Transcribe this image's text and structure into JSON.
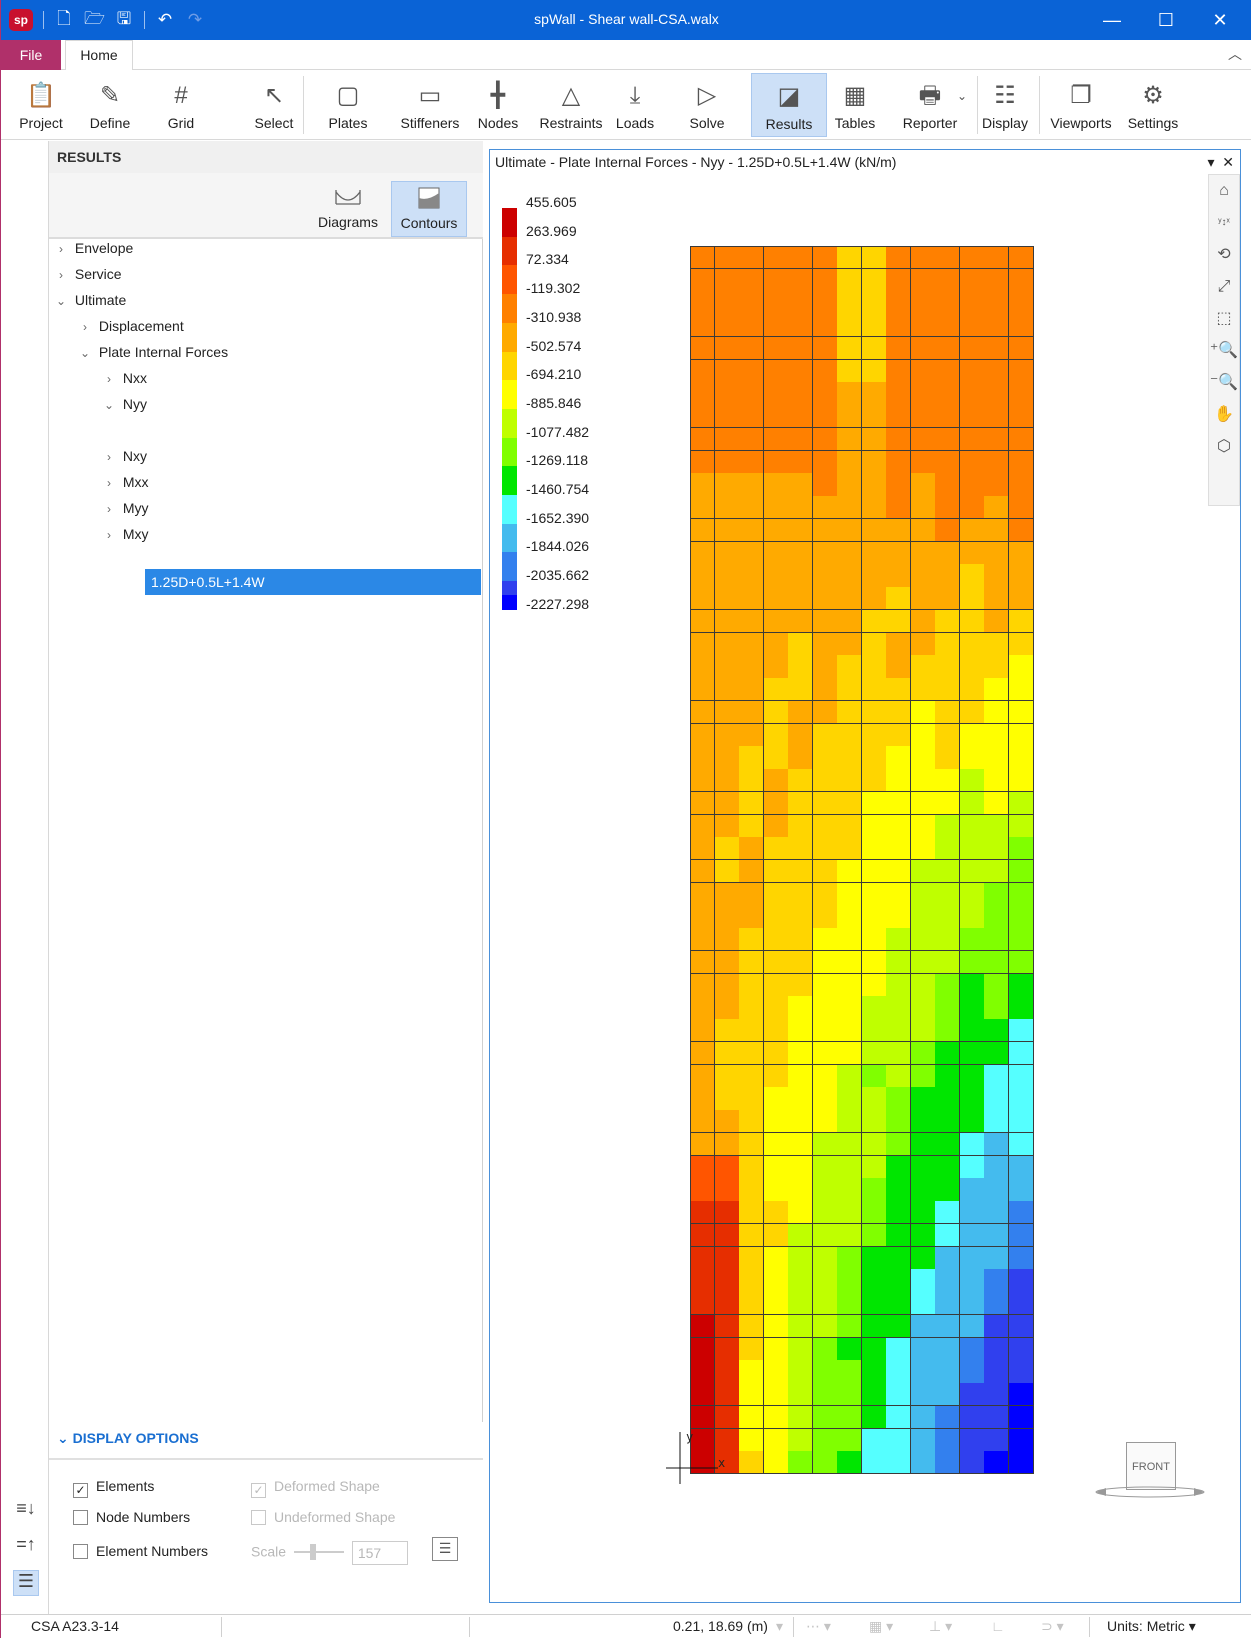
{
  "app": {
    "title": "spWall - Shear wall-CSA.walx",
    "logo": "sp"
  },
  "window_controls": {
    "minimize": "—",
    "maximize": "☐",
    "close": "✕"
  },
  "menu": {
    "file": "File",
    "home": "Home"
  },
  "ribbon": {
    "buttons": [
      {
        "label": "Project",
        "icon": "project-icon"
      },
      {
        "label": "Define",
        "icon": "define-icon"
      },
      {
        "label": "Grid",
        "icon": "grid-icon"
      },
      {
        "label": "Select",
        "icon": "cursor-icon"
      },
      {
        "label": "Plates",
        "icon": "plates-icon"
      },
      {
        "label": "Stiffeners",
        "icon": "stiffeners-icon"
      },
      {
        "label": "Nodes",
        "icon": "nodes-icon"
      },
      {
        "label": "Restraints",
        "icon": "restraints-icon"
      },
      {
        "label": "Loads",
        "icon": "loads-icon"
      },
      {
        "label": "Solve",
        "icon": "solve-icon"
      },
      {
        "label": "Results",
        "icon": "results-icon",
        "active": true
      },
      {
        "label": "Tables",
        "icon": "tables-icon"
      },
      {
        "label": "Reporter",
        "icon": "reporter-icon"
      },
      {
        "label": "Display",
        "icon": "display-icon"
      },
      {
        "label": "Viewports",
        "icon": "viewports-icon"
      },
      {
        "label": "Settings",
        "icon": "settings-icon"
      }
    ]
  },
  "results_panel": {
    "header": "RESULTS",
    "modes": {
      "diagrams": "Diagrams",
      "contours": "Contours",
      "active": "Contours"
    },
    "tree": {
      "envelope": "Envelope",
      "service": "Service",
      "ultimate": "Ultimate",
      "displacement": "Displacement",
      "plate_internal_forces": "Plate Internal Forces",
      "nxx": "Nxx",
      "nyy": "Nyy",
      "selected_combo": "1.25D+0.5L+1.4W",
      "nxy": "Nxy",
      "mxx": "Mxx",
      "myy": "Myy",
      "mxy": "Mxy"
    },
    "display_options": {
      "header": "DISPLAY OPTIONS",
      "elements": "Elements",
      "elements_checked": true,
      "node_numbers": "Node Numbers",
      "element_numbers": "Element Numbers",
      "deformed_shape": "Deformed Shape",
      "undeformed_shape": "Undeformed Shape",
      "scale_label": "Scale",
      "scale_value": "157"
    }
  },
  "viewport": {
    "title": "Ultimate - Plate Internal Forces - Nyy - 1.25D+0.5L+1.4W (kN/m)",
    "legend": [
      {
        "value": "455.605",
        "color": "#cc0000"
      },
      {
        "value": "263.969",
        "color": "#e62e00"
      },
      {
        "value": "72.334",
        "color": "#ff5500"
      },
      {
        "value": "-119.302",
        "color": "#ff8000"
      },
      {
        "value": "-310.938",
        "color": "#ffaa00"
      },
      {
        "value": "-502.574",
        "color": "#ffd500"
      },
      {
        "value": "-694.210",
        "color": "#ffff00"
      },
      {
        "value": "-885.846",
        "color": "#bfff00"
      },
      {
        "value": "-1077.482",
        "color": "#80ff00"
      },
      {
        "value": "-1269.118",
        "color": "#00e600"
      },
      {
        "value": "-1460.754",
        "color": "#55ffff"
      },
      {
        "value": "-1652.390",
        "color": "#44bbee"
      },
      {
        "value": "-1844.026",
        "color": "#3380ee"
      },
      {
        "value": "-2035.662",
        "color": "#3040ee"
      },
      {
        "value": "-2227.298",
        "color": "#0000ff"
      }
    ],
    "axis_x": "x",
    "axis_y": "y",
    "view_cube": "FRONT"
  },
  "status": {
    "code": "CSA A23.3-14",
    "coords": "0.21, 18.69 (m)",
    "units_label": "Units:",
    "units_value": "Metric"
  },
  "colors": {
    "accent": "#0a63d6",
    "file_tab": "#b0306a",
    "selection": "#2b88e6"
  }
}
